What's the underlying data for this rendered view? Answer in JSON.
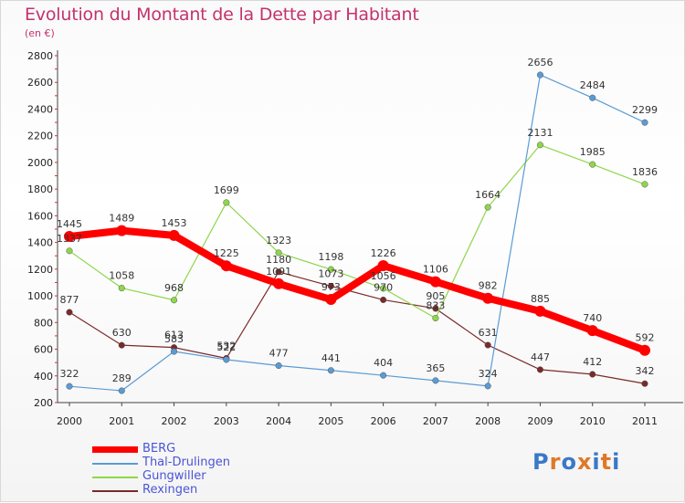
{
  "header": {
    "title": "Evolution du Montant de la Dette par Habitant",
    "subtitle": "(en €)"
  },
  "logo": {
    "text": "Proxiti",
    "colors": [
      "#3a78c8",
      "#e07828",
      "#3a78c8",
      "#e07828",
      "#3a78c8",
      "#e07828",
      "#3a78c8"
    ]
  },
  "chart_data": {
    "type": "line",
    "x": [
      "2000",
      "2001",
      "2002",
      "2003",
      "2004",
      "2005",
      "2006",
      "2007",
      "2008",
      "2009",
      "2010",
      "2011"
    ],
    "ylim": [
      200,
      2800
    ],
    "yticks": [
      200,
      400,
      600,
      800,
      1000,
      1200,
      1400,
      1600,
      1800,
      2000,
      2200,
      2400,
      2600,
      2800
    ],
    "grid": false,
    "legend_position": "bottom-left",
    "series": [
      {
        "name": "BERG",
        "color": "#ff0000",
        "values": [
          1445,
          1489,
          1453,
          1225,
          1091,
          973,
          1226,
          1106,
          982,
          885,
          740,
          592
        ]
      },
      {
        "name": "Thal-Drulingen",
        "color": "#5a9bd4",
        "values": [
          322,
          289,
          583,
          522,
          477,
          441,
          404,
          365,
          324,
          2656,
          2484,
          2299
        ]
      },
      {
        "name": "Gungwiller",
        "color": "#8ed64a",
        "values": [
          1337,
          1058,
          968,
          1699,
          1323,
          1198,
          1056,
          833,
          1664,
          2131,
          1985,
          1836
        ]
      },
      {
        "name": "Rexingen",
        "color": "#7a2a2a",
        "values": [
          877,
          630,
          613,
          532,
          1180,
          1073,
          970,
          905,
          631,
          447,
          412,
          342
        ]
      }
    ]
  }
}
